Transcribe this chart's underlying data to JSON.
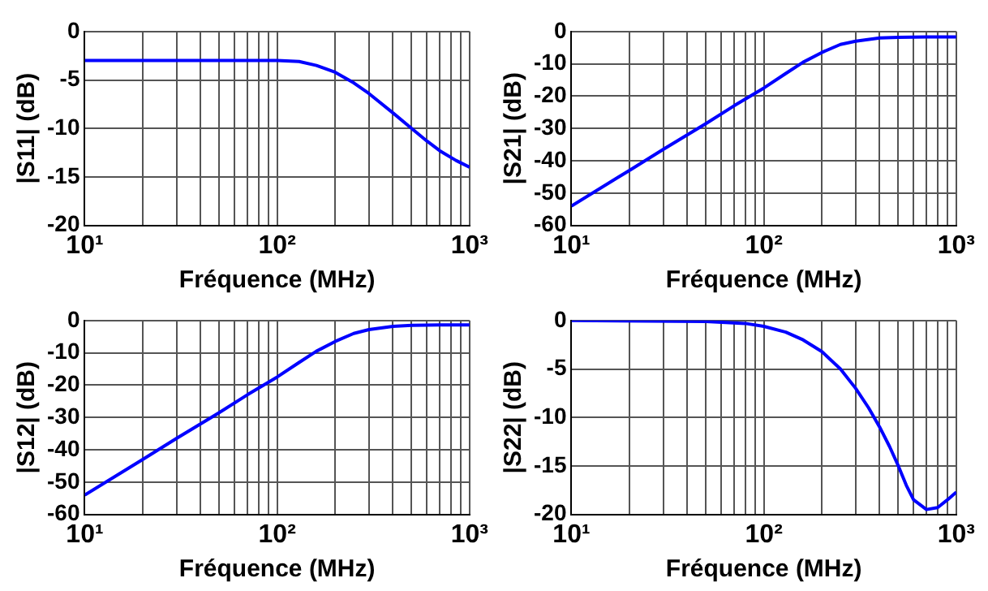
{
  "chart_data": [
    {
      "type": "line",
      "xlabel": "Fréquence (MHz)",
      "ylabel": "|S11| (dB)",
      "log": "x",
      "grid": true,
      "marker": "none",
      "line_style": "solid",
      "xlim": [
        10,
        1000
      ],
      "ylim": [
        -20,
        0
      ],
      "xticks": [
        {
          "value": 10,
          "label": "10¹"
        },
        {
          "value": 20,
          "label": null
        },
        {
          "value": 30,
          "label": null
        },
        {
          "value": 40,
          "label": null
        },
        {
          "value": 50,
          "label": null
        },
        {
          "value": 60,
          "label": null
        },
        {
          "value": 70,
          "label": null
        },
        {
          "value": 80,
          "label": null
        },
        {
          "value": 90,
          "label": null
        },
        {
          "value": 100,
          "label": "10²"
        },
        {
          "value": 200,
          "label": null
        },
        {
          "value": 300,
          "label": null
        },
        {
          "value": 400,
          "label": null
        },
        {
          "value": 500,
          "label": null
        },
        {
          "value": 600,
          "label": null
        },
        {
          "value": 700,
          "label": null
        },
        {
          "value": 800,
          "label": null
        },
        {
          "value": 900,
          "label": null
        },
        {
          "value": 1000,
          "label": "10³"
        }
      ],
      "yticks": [
        -20,
        -15,
        -10,
        -5,
        0
      ],
      "series": [
        {
          "color": "#0000ff",
          "x": [
            10,
            50,
            100,
            130,
            160,
            200,
            250,
            300,
            400,
            500,
            600,
            700,
            850,
            1000
          ],
          "values": [
            -3,
            -3,
            -3,
            -3.1,
            -3.5,
            -4.2,
            -5.3,
            -6.4,
            -8.4,
            -10,
            -11.3,
            -12.3,
            -13.3,
            -14
          ]
        }
      ]
    },
    {
      "type": "line",
      "xlabel": "Fréquence (MHz)",
      "ylabel": "|S21| (dB)",
      "log": "x",
      "grid": true,
      "marker": "none",
      "line_style": "solid",
      "xlim": [
        10,
        1000
      ],
      "ylim": [
        -60,
        0
      ],
      "xticks": [
        {
          "value": 10,
          "label": "10¹"
        },
        {
          "value": 20,
          "label": null
        },
        {
          "value": 30,
          "label": null
        },
        {
          "value": 40,
          "label": null
        },
        {
          "value": 50,
          "label": null
        },
        {
          "value": 60,
          "label": null
        },
        {
          "value": 70,
          "label": null
        },
        {
          "value": 80,
          "label": null
        },
        {
          "value": 90,
          "label": null
        },
        {
          "value": 100,
          "label": "10²"
        },
        {
          "value": 200,
          "label": null
        },
        {
          "value": 300,
          "label": null
        },
        {
          "value": 400,
          "label": null
        },
        {
          "value": 500,
          "label": null
        },
        {
          "value": 600,
          "label": null
        },
        {
          "value": 700,
          "label": null
        },
        {
          "value": 800,
          "label": null
        },
        {
          "value": 900,
          "label": null
        },
        {
          "value": 1000,
          "label": "10³"
        }
      ],
      "yticks": [
        -60,
        -50,
        -40,
        -30,
        -20,
        -10,
        0
      ],
      "series": [
        {
          "color": "#0000ff",
          "x": [
            10,
            20,
            30,
            50,
            70,
            100,
            130,
            160,
            200,
            250,
            300,
            400,
            500,
            700,
            1000
          ],
          "values": [
            -54,
            -43,
            -36.5,
            -28.5,
            -23,
            -17.5,
            -13,
            -9.5,
            -6.5,
            -4,
            -3,
            -2,
            -1.8,
            -1.7,
            -1.7
          ]
        }
      ]
    },
    {
      "type": "line",
      "xlabel": "Fréquence (MHz)",
      "ylabel": "|S12| (dB)",
      "log": "x",
      "grid": true,
      "marker": "none",
      "line_style": "solid",
      "xlim": [
        10,
        1000
      ],
      "ylim": [
        -60,
        0
      ],
      "xticks": [
        {
          "value": 10,
          "label": "10¹"
        },
        {
          "value": 20,
          "label": null
        },
        {
          "value": 30,
          "label": null
        },
        {
          "value": 40,
          "label": null
        },
        {
          "value": 50,
          "label": null
        },
        {
          "value": 60,
          "label": null
        },
        {
          "value": 70,
          "label": null
        },
        {
          "value": 80,
          "label": null
        },
        {
          "value": 90,
          "label": null
        },
        {
          "value": 100,
          "label": "10²"
        },
        {
          "value": 200,
          "label": null
        },
        {
          "value": 300,
          "label": null
        },
        {
          "value": 400,
          "label": null
        },
        {
          "value": 500,
          "label": null
        },
        {
          "value": 600,
          "label": null
        },
        {
          "value": 700,
          "label": null
        },
        {
          "value": 800,
          "label": null
        },
        {
          "value": 900,
          "label": null
        },
        {
          "value": 1000,
          "label": "10³"
        }
      ],
      "yticks": [
        -60,
        -50,
        -40,
        -30,
        -20,
        -10,
        0
      ],
      "series": [
        {
          "color": "#0000ff",
          "x": [
            10,
            20,
            30,
            50,
            70,
            100,
            130,
            160,
            200,
            250,
            300,
            400,
            500,
            700,
            1000
          ],
          "values": [
            -54,
            -43,
            -36.5,
            -28.5,
            -23,
            -17.5,
            -13,
            -9.5,
            -6.5,
            -4,
            -2.8,
            -1.8,
            -1.5,
            -1.4,
            -1.4
          ]
        }
      ]
    },
    {
      "type": "line",
      "xlabel": "Fréquence (MHz)",
      "ylabel": "|S22| (dB)",
      "log": "x",
      "grid": true,
      "marker": "none",
      "line_style": "solid",
      "xlim": [
        10,
        1000
      ],
      "ylim": [
        -20,
        0
      ],
      "xticks": [
        {
          "value": 10,
          "label": "10¹"
        },
        {
          "value": 20,
          "label": null
        },
        {
          "value": 30,
          "label": null
        },
        {
          "value": 40,
          "label": null
        },
        {
          "value": 50,
          "label": null
        },
        {
          "value": 60,
          "label": null
        },
        {
          "value": 70,
          "label": null
        },
        {
          "value": 80,
          "label": null
        },
        {
          "value": 90,
          "label": null
        },
        {
          "value": 100,
          "label": "10²"
        },
        {
          "value": 200,
          "label": null
        },
        {
          "value": 300,
          "label": null
        },
        {
          "value": 400,
          "label": null
        },
        {
          "value": 500,
          "label": null
        },
        {
          "value": 600,
          "label": null
        },
        {
          "value": 700,
          "label": null
        },
        {
          "value": 800,
          "label": null
        },
        {
          "value": 900,
          "label": null
        },
        {
          "value": 1000,
          "label": "10³"
        }
      ],
      "yticks": [
        -20,
        -15,
        -10,
        -5,
        0
      ],
      "series": [
        {
          "color": "#0000ff",
          "x": [
            10,
            50,
            80,
            100,
            130,
            160,
            200,
            250,
            300,
            350,
            400,
            450,
            500,
            550,
            600,
            700,
            800,
            900,
            1000
          ],
          "values": [
            0,
            -0.1,
            -0.3,
            -0.6,
            -1.2,
            -2,
            -3.2,
            -5,
            -7,
            -9,
            -11,
            -13,
            -15,
            -17,
            -18.5,
            -19.5,
            -19.3,
            -18.5,
            -17.7
          ]
        }
      ]
    }
  ]
}
